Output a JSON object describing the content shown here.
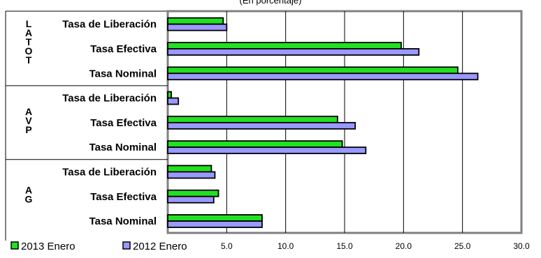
{
  "chart_data": {
    "type": "bar",
    "orientation": "horizontal",
    "subtitle": "(En porcentaje)",
    "groups": [
      {
        "label": "LATOT",
        "categories": [
          "Tasa de Liberación",
          "Tasa Efectiva",
          "Tasa Nominal"
        ],
        "series_values": {
          "2013 Enero": [
            4.7,
            19.8,
            24.6
          ],
          "2012 Enero": [
            5.0,
            21.3,
            26.3
          ]
        }
      },
      {
        "label": "AVP",
        "categories": [
          "Tasa de Liberación",
          "Tasa Efectiva",
          "Tasa Nominal"
        ],
        "series_values": {
          "2013 Enero": [
            0.3,
            14.4,
            14.8
          ],
          "2012 Enero": [
            0.9,
            15.9,
            16.8
          ]
        }
      },
      {
        "label": "AG",
        "categories": [
          "Tasa de Liberación",
          "Tasa Efectiva",
          "Tasa Nominal"
        ],
        "series_values": {
          "2013 Enero": [
            3.7,
            4.3,
            8.0
          ],
          "2012 Enero": [
            4.0,
            3.9,
            8.0
          ]
        }
      }
    ],
    "series": [
      {
        "name": "2013 Enero",
        "color": "#22e022"
      },
      {
        "name": "2012 Enero",
        "color": "#9999ff"
      }
    ],
    "xlim": [
      0,
      30
    ],
    "xticks": [
      "5.0",
      "10.0",
      "15.0",
      "20.0",
      "25.0",
      "30.0"
    ],
    "grid": "vertical",
    "legend": "bottom-left"
  }
}
